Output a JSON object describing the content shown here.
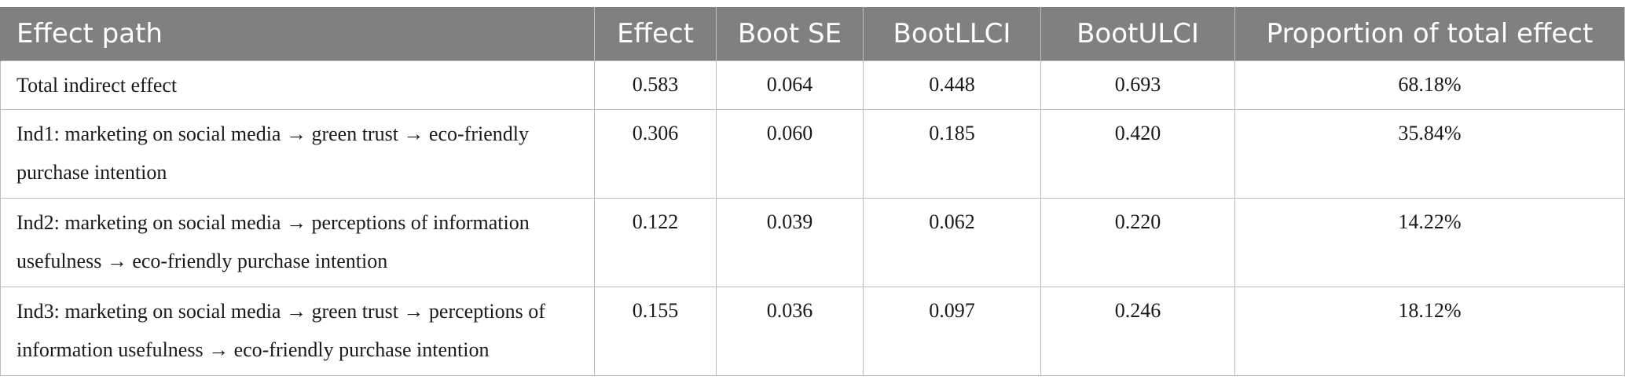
{
  "table": {
    "headers": [
      "Effect path",
      "Effect",
      "Boot SE",
      "BootLLCI",
      "BootULCI",
      "Proportion of total effect"
    ],
    "rows": [
      {
        "path": "Total indirect effect",
        "effect": "0.583",
        "boot_se": "0.064",
        "boot_llci": "0.448",
        "boot_ulci": "0.693",
        "proportion": "68.18%"
      },
      {
        "path": "Ind1: marketing on social media → green trust → eco-friendly purchase intention",
        "effect": "0.306",
        "boot_se": "0.060",
        "boot_llci": "0.185",
        "boot_ulci": "0.420",
        "proportion": "35.84%"
      },
      {
        "path": "Ind2: marketing on social media → perceptions of information usefulness → eco-friendly purchase intention",
        "effect": "0.122",
        "boot_se": "0.039",
        "boot_llci": "0.062",
        "boot_ulci": "0.220",
        "proportion": "14.22%"
      },
      {
        "path": "Ind3: marketing on social media → green trust → perceptions of information usefulness → eco-friendly purchase intention",
        "effect": "0.155",
        "boot_se": "0.036",
        "boot_llci": "0.097",
        "boot_ulci": "0.246",
        "proportion": "18.12%"
      }
    ]
  }
}
